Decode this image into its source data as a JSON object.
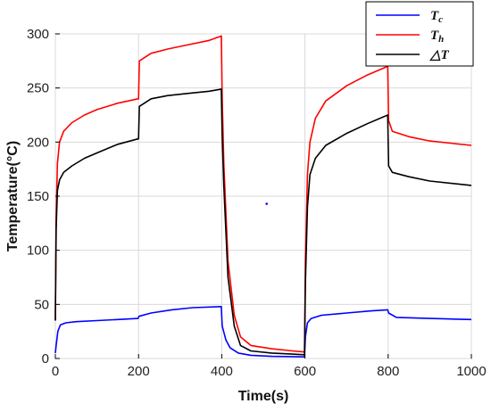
{
  "chart_data": {
    "type": "line",
    "xlabel": "Time(s)",
    "ylabel": "Temperature(°C)",
    "xlim": [
      0,
      1000
    ],
    "ylim": [
      0,
      300
    ],
    "x_ticks": [
      0,
      200,
      400,
      600,
      800,
      1000
    ],
    "y_ticks": [
      0,
      50,
      100,
      150,
      200,
      250,
      300
    ],
    "grid": true,
    "legend_position": "top-right",
    "legend": [
      {
        "symbol": "T",
        "subscript": "c",
        "color": "#0000ff"
      },
      {
        "symbol": "T",
        "subscript": "h",
        "color": "#ff0000"
      },
      {
        "symbol": "△T",
        "subscript": "",
        "color": "#000000"
      }
    ],
    "series": [
      {
        "key": "Tc",
        "color": "#0000ff",
        "x": [
          0,
          2,
          6,
          12,
          25,
          50,
          100,
          150,
          199,
          201,
          230,
          280,
          330,
          399,
          401,
          410,
          420,
          440,
          470,
          520,
          599,
          601,
          606,
          615,
          640,
          700,
          760,
          799,
          801,
          820,
          900,
          1000
        ],
        "y": [
          5,
          12,
          25,
          31,
          33,
          34,
          35,
          36,
          37,
          39,
          42,
          45,
          47,
          48,
          30,
          17,
          10,
          5,
          3,
          2,
          1.5,
          20,
          33,
          37,
          40,
          42,
          44,
          45,
          42,
          38,
          37,
          36
        ]
      },
      {
        "key": "Th",
        "color": "#ff0000",
        "x": [
          0,
          2,
          5,
          10,
          20,
          40,
          70,
          100,
          150,
          199,
          200,
          202,
          230,
          270,
          320,
          370,
          399,
          401,
          405,
          415,
          430,
          445,
          470,
          520,
          570,
          599,
          601,
          606,
          612,
          625,
          650,
          700,
          750,
          799,
          801,
          810,
          850,
          900,
          1000
        ],
        "y": [
          35,
          130,
          180,
          200,
          210,
          218,
          225,
          230,
          236,
          240,
          240,
          275,
          282,
          286,
          290,
          294,
          298,
          240,
          180,
          90,
          40,
          20,
          12,
          9,
          7,
          6,
          90,
          170,
          200,
          222,
          238,
          252,
          262,
          270,
          220,
          210,
          205,
          201,
          197
        ]
      },
      {
        "key": "dT",
        "color": "#000000",
        "x": [
          0,
          2,
          5,
          10,
          20,
          40,
          70,
          100,
          150,
          199,
          200,
          202,
          230,
          270,
          320,
          370,
          399,
          401,
          405,
          415,
          430,
          445,
          470,
          520,
          570,
          599,
          601,
          606,
          612,
          625,
          650,
          700,
          750,
          799,
          801,
          810,
          850,
          900,
          1000
        ],
        "y": [
          35,
          120,
          155,
          165,
          172,
          178,
          185,
          190,
          198,
          203,
          203,
          233,
          240,
          243,
          245,
          247,
          249,
          205,
          160,
          75,
          30,
          12,
          7,
          5,
          4,
          3.5,
          70,
          140,
          170,
          185,
          197,
          208,
          217,
          225,
          178,
          172,
          168,
          164,
          160
        ]
      }
    ],
    "annotations": [
      {
        "type": "dot",
        "x": 508,
        "y": 143,
        "color": "#0000ff"
      }
    ]
  }
}
